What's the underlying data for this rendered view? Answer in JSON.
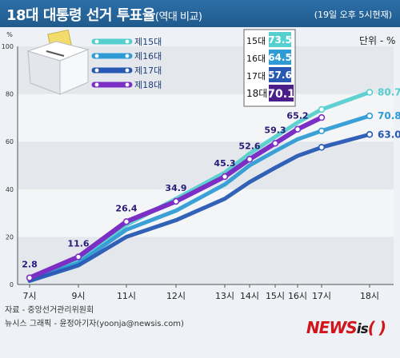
{
  "header": {
    "title_main": "18대 대통령 선거 투표율",
    "title_sub": "(역대 비교)",
    "timestamp": "(19일 오후 5시현재)"
  },
  "unit_label": "단위 - %",
  "y_axis_unit": "%",
  "footer": {
    "source": "자료 - 중앙선거관리위원회",
    "credit": "뉴시스 그래픽 - 윤정아기자(yoonja@newsis.com)"
  },
  "logo": {
    "text_a": "NEWS",
    "text_b": "is",
    "text_c": "( )"
  },
  "colors": {
    "e15": "#56cfcf",
    "e16": "#2f9bd4",
    "e17": "#2758b4",
    "e18": "#7b2fc4"
  },
  "summary_box": [
    {
      "label": "15대",
      "value": "73.5",
      "color": "#56cfcf"
    },
    {
      "label": "16대",
      "value": "64.5",
      "color": "#2f9bd4"
    },
    {
      "label": "17대",
      "value": "57.6",
      "color": "#2758b4"
    },
    {
      "label": "18대",
      "value": "70.1",
      "color": "#4b1f8a"
    }
  ],
  "chart_data": {
    "type": "line",
    "categories": [
      "7시",
      "9시",
      "11시",
      "12시",
      "13시",
      "14시",
      "15시",
      "16시",
      "17시",
      "18시"
    ],
    "y_ticks": [
      "0",
      "20",
      "40",
      "60",
      "80",
      "100"
    ],
    "ylim": [
      0,
      100
    ],
    "series": [
      {
        "name": "제15대",
        "values": [
          null,
          null,
          null,
          null,
          null,
          null,
          null,
          null,
          73.5,
          80.7
        ]
      },
      {
        "name": "제16대",
        "values": [
          null,
          null,
          null,
          null,
          null,
          null,
          null,
          null,
          64.5,
          70.8
        ]
      },
      {
        "name": "제17대",
        "values": [
          null,
          null,
          null,
          null,
          null,
          null,
          null,
          null,
          57.6,
          63.0
        ]
      },
      {
        "name": "제18대",
        "values": [
          2.8,
          11.6,
          26.4,
          34.9,
          45.3,
          52.6,
          59.3,
          65.2,
          70.1,
          null
        ]
      }
    ],
    "data_labels": [
      {
        "series": "제18대",
        "text": "2.8"
      },
      {
        "series": "제18대",
        "text": "11.6"
      },
      {
        "series": "제18대",
        "text": "26.4"
      },
      {
        "series": "제18대",
        "text": "34.9"
      },
      {
        "series": "제18대",
        "text": "45.3"
      },
      {
        "series": "제18대",
        "text": "52.6"
      },
      {
        "series": "제18대",
        "text": "59.3"
      },
      {
        "series": "제18대",
        "text": "65.2"
      },
      {
        "series": "제15대",
        "text": "80.7"
      },
      {
        "series": "제16대",
        "text": "70.8"
      },
      {
        "series": "제17대",
        "text": "63.0"
      }
    ]
  }
}
